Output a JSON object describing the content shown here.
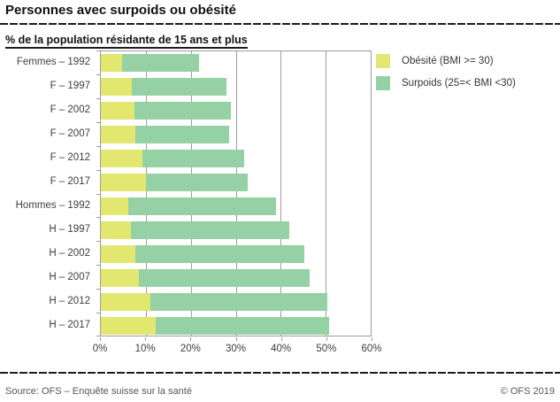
{
  "header": {
    "title": "Personnes avec surpoids ou obésité"
  },
  "chart": {
    "subtitle": "% de la population résidante de 15 ans et plus",
    "chart_data": {
      "type": "bar",
      "orientation": "horizontal",
      "stacked": true,
      "title": "Personnes avec surpoids ou obésité",
      "subtitle": "% de la population résidante de 15 ans et plus",
      "categories": [
        "Femmes – 1992",
        "F – 1997",
        "F – 2002",
        "F – 2007",
        "F – 2012",
        "F – 2017",
        "Hommes – 1992",
        "H – 1997",
        "H – 2002",
        "H – 2007",
        "H – 2012",
        "H – 2017"
      ],
      "series": [
        {
          "name": "Obésité (BMI >= 30)",
          "color": "#e1e76f",
          "values": [
            4.7,
            6.9,
            7.4,
            7.7,
            9.2,
            10.0,
            6.0,
            6.6,
            7.6,
            8.4,
            11.0,
            12.1
          ]
        },
        {
          "name": "Surpoids (25=< BMI <30)",
          "color": "#95d1a4",
          "values": [
            17.1,
            21.1,
            21.5,
            20.9,
            22.7,
            22.7,
            33.0,
            35.4,
            37.7,
            38.1,
            39.3,
            38.7
          ]
        }
      ],
      "xlim": [
        0,
        60
      ],
      "xticks": [
        "0%",
        "10%",
        "20%",
        "30%",
        "40%",
        "50%",
        "60%"
      ],
      "grid": "vertical",
      "legend_position": "top-right",
      "colors": {
        "grid": "#9c9c9c",
        "axis_text": "#3d3d3d"
      }
    }
  },
  "footer": {
    "source": "Source: OFS – Enquête suisse sur la santé",
    "copyright": "© OFS 2019"
  }
}
